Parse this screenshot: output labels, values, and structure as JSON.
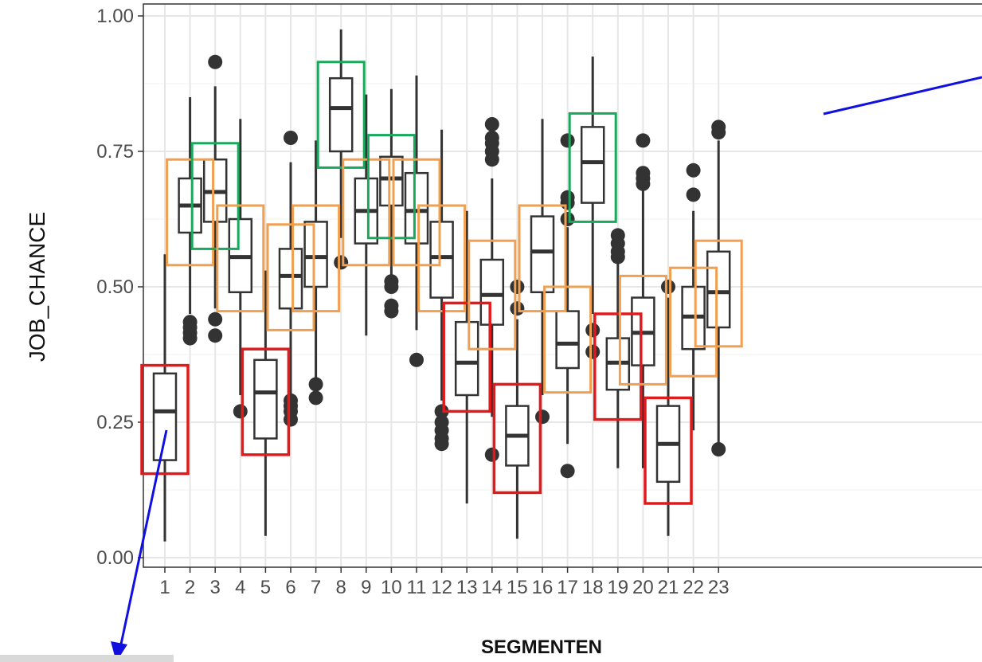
{
  "chart_data": {
    "type": "boxplot",
    "xlabel": "SEGMENTEN",
    "ylabel": "JOB_CHANCE",
    "ylim": [
      0,
      1
    ],
    "grid": true,
    "categories": [
      "1",
      "2",
      "3",
      "4",
      "5",
      "6",
      "7",
      "8",
      "9",
      "10",
      "11",
      "12",
      "13",
      "14",
      "15",
      "16",
      "17",
      "18",
      "19",
      "20",
      "21",
      "22",
      "23"
    ],
    "y_ticks": [
      "0.00",
      "0.25",
      "0.50",
      "0.75",
      "1.00"
    ],
    "highlight_colors": {
      "red": "#e31a1c",
      "orange": "#f0a050",
      "green": "#1aa85c"
    },
    "boxes": [
      {
        "x": "1",
        "q1": 0.18,
        "median": 0.27,
        "q3": 0.34,
        "whisker_low": 0.03,
        "whisker_high": 0.56,
        "outliers": [],
        "highlight": "red",
        "hl_low": 0.155,
        "hl_high": 0.355
      },
      {
        "x": "2",
        "q1": 0.6,
        "median": 0.65,
        "q3": 0.7,
        "whisker_low": 0.45,
        "whisker_high": 0.85,
        "outliers": [
          0.405,
          0.415,
          0.425,
          0.435
        ],
        "highlight": "orange",
        "hl_low": 0.54,
        "hl_high": 0.735
      },
      {
        "x": "3",
        "q1": 0.62,
        "median": 0.675,
        "q3": 0.735,
        "whisker_low": 0.46,
        "whisker_high": 0.87,
        "outliers": [
          0.41,
          0.44,
          0.915
        ],
        "highlight": "green",
        "hl_low": 0.57,
        "hl_high": 0.765
      },
      {
        "x": "4",
        "q1": 0.49,
        "median": 0.555,
        "q3": 0.625,
        "whisker_low": 0.3,
        "whisker_high": 0.81,
        "outliers": [
          0.27
        ],
        "highlight": "orange",
        "hl_low": 0.455,
        "hl_high": 0.65
      },
      {
        "x": "5",
        "q1": 0.22,
        "median": 0.305,
        "q3": 0.365,
        "whisker_low": 0.04,
        "whisker_high": 0.53,
        "outliers": [],
        "highlight": "red",
        "hl_low": 0.19,
        "hl_high": 0.385
      },
      {
        "x": "6",
        "q1": 0.46,
        "median": 0.52,
        "q3": 0.57,
        "whisker_low": 0.3,
        "whisker_high": 0.73,
        "outliers": [
          0.255,
          0.27,
          0.28,
          0.29,
          0.775
        ],
        "highlight": "orange",
        "hl_low": 0.42,
        "hl_high": 0.615
      },
      {
        "x": "7",
        "q1": 0.5,
        "median": 0.555,
        "q3": 0.62,
        "whisker_low": 0.33,
        "whisker_high": 0.77,
        "outliers": [
          0.295,
          0.32
        ],
        "highlight": "orange",
        "hl_low": 0.455,
        "hl_high": 0.65
      },
      {
        "x": "8",
        "q1": 0.75,
        "median": 0.83,
        "q3": 0.885,
        "whisker_low": 0.59,
        "whisker_high": 0.975,
        "outliers": [
          0.545
        ],
        "highlight": "green",
        "hl_low": 0.72,
        "hl_high": 0.915
      },
      {
        "x": "9",
        "q1": 0.58,
        "median": 0.64,
        "q3": 0.7,
        "whisker_low": 0.41,
        "whisker_high": 0.855,
        "outliers": [],
        "highlight": "orange",
        "hl_low": 0.54,
        "hl_high": 0.735
      },
      {
        "x": "10",
        "q1": 0.65,
        "median": 0.7,
        "q3": 0.74,
        "whisker_low": 0.52,
        "whisker_high": 0.865,
        "outliers": [
          0.455,
          0.465,
          0.5,
          0.51
        ],
        "highlight": "green",
        "hl_low": 0.59,
        "hl_high": 0.78
      },
      {
        "x": "11",
        "q1": 0.58,
        "median": 0.64,
        "q3": 0.71,
        "whisker_low": 0.42,
        "whisker_high": 0.89,
        "outliers": [
          0.365
        ],
        "highlight": "orange",
        "hl_low": 0.54,
        "hl_high": 0.735
      },
      {
        "x": "12",
        "q1": 0.48,
        "median": 0.555,
        "q3": 0.62,
        "whisker_low": 0.29,
        "whisker_high": 0.79,
        "outliers": [
          0.21,
          0.22,
          0.235,
          0.25,
          0.27
        ],
        "highlight": "orange",
        "hl_low": 0.455,
        "hl_high": 0.65
      },
      {
        "x": "13",
        "q1": 0.3,
        "median": 0.36,
        "q3": 0.435,
        "whisker_low": 0.1,
        "whisker_high": 0.64,
        "outliers": [],
        "highlight": "red",
        "hl_low": 0.27,
        "hl_high": 0.47
      },
      {
        "x": "14",
        "q1": 0.43,
        "median": 0.485,
        "q3": 0.55,
        "whisker_low": 0.26,
        "whisker_high": 0.7,
        "outliers": [
          0.19,
          0.735,
          0.75,
          0.765,
          0.775,
          0.8
        ],
        "highlight": "orange",
        "hl_low": 0.385,
        "hl_high": 0.585
      },
      {
        "x": "15",
        "q1": 0.17,
        "median": 0.225,
        "q3": 0.28,
        "whisker_low": 0.035,
        "whisker_high": 0.44,
        "outliers": [
          0.46,
          0.5
        ],
        "highlight": "red",
        "hl_low": 0.12,
        "hl_high": 0.32
      },
      {
        "x": "16",
        "q1": 0.49,
        "median": 0.565,
        "q3": 0.63,
        "whisker_low": 0.3,
        "whisker_high": 0.81,
        "outliers": [
          0.26
        ],
        "highlight": "orange",
        "hl_low": 0.455,
        "hl_high": 0.65
      },
      {
        "x": "17",
        "q1": 0.35,
        "median": 0.395,
        "q3": 0.455,
        "whisker_low": 0.21,
        "whisker_high": 0.61,
        "outliers": [
          0.16,
          0.625,
          0.655,
          0.665,
          0.77
        ],
        "highlight": "orange",
        "hl_low": 0.305,
        "hl_high": 0.5
      },
      {
        "x": "18",
        "q1": 0.655,
        "median": 0.73,
        "q3": 0.795,
        "whisker_low": 0.45,
        "whisker_high": 0.925,
        "outliers": [
          0.38,
          0.42
        ],
        "highlight": "green",
        "hl_low": 0.62,
        "hl_high": 0.82
      },
      {
        "x": "19",
        "q1": 0.31,
        "median": 0.36,
        "q3": 0.405,
        "whisker_low": 0.165,
        "whisker_high": 0.55,
        "outliers": [
          0.555,
          0.565,
          0.58,
          0.595
        ],
        "highlight": "red",
        "hl_low": 0.255,
        "hl_high": 0.45
      },
      {
        "x": "20",
        "q1": 0.355,
        "median": 0.415,
        "q3": 0.48,
        "whisker_low": 0.165,
        "whisker_high": 0.68,
        "outliers": [
          0.69,
          0.7,
          0.71,
          0.77
        ],
        "highlight": "orange",
        "hl_low": 0.32,
        "hl_high": 0.52
      },
      {
        "x": "21",
        "q1": 0.14,
        "median": 0.21,
        "q3": 0.28,
        "whisker_low": 0.04,
        "whisker_high": 0.48,
        "outliers": [
          0.5
        ],
        "highlight": "red",
        "hl_low": 0.1,
        "hl_high": 0.295
      },
      {
        "x": "22",
        "q1": 0.385,
        "median": 0.445,
        "q3": 0.5,
        "whisker_low": 0.235,
        "whisker_high": 0.64,
        "outliers": [
          0.67,
          0.715
        ],
        "highlight": "orange",
        "hl_low": 0.335,
        "hl_high": 0.535
      },
      {
        "x": "23",
        "q1": 0.425,
        "median": 0.49,
        "q3": 0.565,
        "whisker_low": 0.21,
        "whisker_high": 0.77,
        "outliers": [
          0.2,
          0.785,
          0.795
        ],
        "highlight": "orange",
        "hl_low": 0.39,
        "hl_high": 0.585
      }
    ]
  }
}
